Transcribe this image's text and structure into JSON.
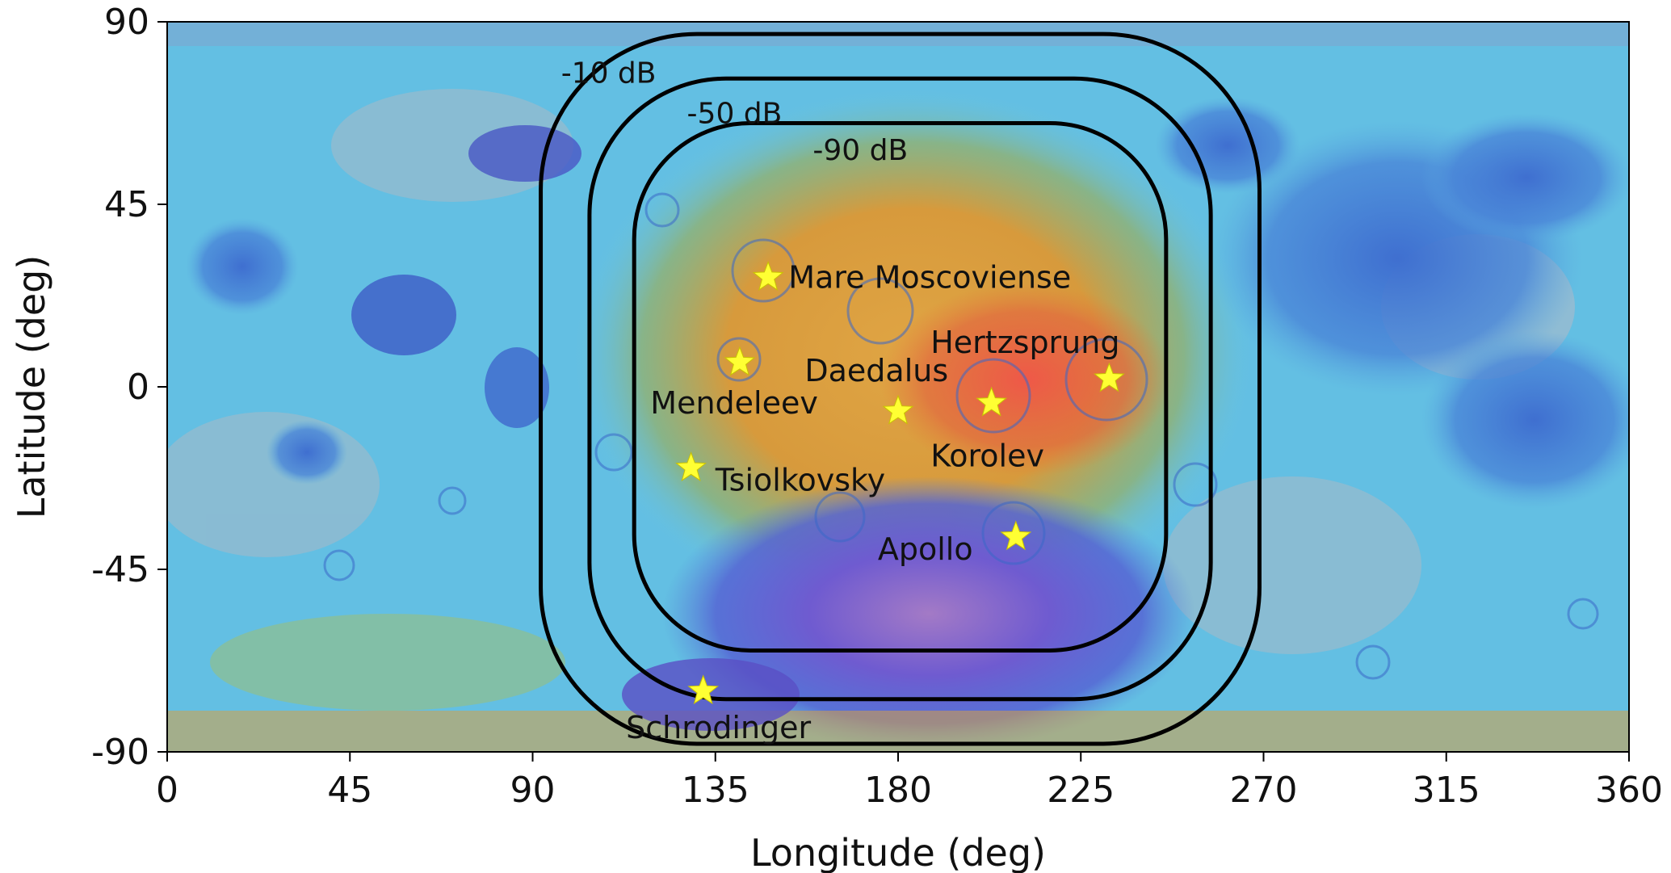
{
  "colors": {
    "highlands_warm": "#e3a33a",
    "peak_red": "#e05547",
    "basin_purple": "#6b58c8",
    "deep_blue": "#4c6fd2",
    "mid_cyan": "#5fc4e4",
    "pale_gray": "#a8b8c4",
    "green": "#6fb85a",
    "contour_line": "#000000",
    "star_marker": "#ffff33"
  },
  "chart_data": {
    "type": "map",
    "projection": "equirectangular",
    "xlabel": "Longitude (deg)",
    "ylabel": "Latitude (deg)",
    "xlim": [
      0,
      360
    ],
    "ylim": [
      -90,
      90
    ],
    "xticks": [
      "0",
      "45",
      "90",
      "135",
      "180",
      "225",
      "270",
      "315",
      "360"
    ],
    "yticks": [
      "90",
      "45",
      "0",
      "-45",
      "-90"
    ],
    "xtick_values": [
      0,
      45,
      90,
      135,
      180,
      225,
      270,
      315,
      360
    ],
    "ytick_values": [
      90,
      45,
      0,
      -45,
      -90
    ],
    "contours": [
      {
        "label": "-10 dB",
        "lon_range": [
          92,
          269
        ],
        "lat_range": [
          -88,
          87
        ],
        "label_at": [
          97,
          75
        ]
      },
      {
        "label": "-50 dB",
        "lon_range": [
          104,
          257
        ],
        "lat_range": [
          -77,
          76
        ],
        "label_at": [
          128,
          65
        ]
      },
      {
        "label": "-90 dB",
        "lon_range": [
          115,
          246
        ],
        "lat_range": [
          -65,
          65
        ],
        "label_at": [
          159,
          56
        ]
      }
    ],
    "sites": [
      {
        "name": "Mare Moscoviense",
        "lon": 148,
        "lat": 27,
        "label_lon": 153,
        "label_lat": 27
      },
      {
        "name": "Hertzsprung",
        "lon": 232,
        "lat": 2,
        "label_lon": 188,
        "label_lat": 11
      },
      {
        "name": "Daedalus",
        "lon": 180,
        "lat": -6,
        "label_lon": 157,
        "label_lat": 4
      },
      {
        "name": "Mendeleev",
        "lon": 141,
        "lat": 6,
        "label_lon": 119,
        "label_lat": -4
      },
      {
        "name": "Korolev",
        "lon": 203,
        "lat": -4,
        "label_lon": 188,
        "label_lat": -17
      },
      {
        "name": "Tsiolkovsky",
        "lon": 129,
        "lat": -20,
        "label_lon": 135,
        "label_lat": -23
      },
      {
        "name": "Apollo",
        "lon": 209,
        "lat": -37,
        "label_lon": 175,
        "label_lat": -40
      },
      {
        "name": "Schrodinger",
        "lon": 132,
        "lat": -75,
        "label_lon": 113,
        "label_lat": -84
      }
    ]
  }
}
